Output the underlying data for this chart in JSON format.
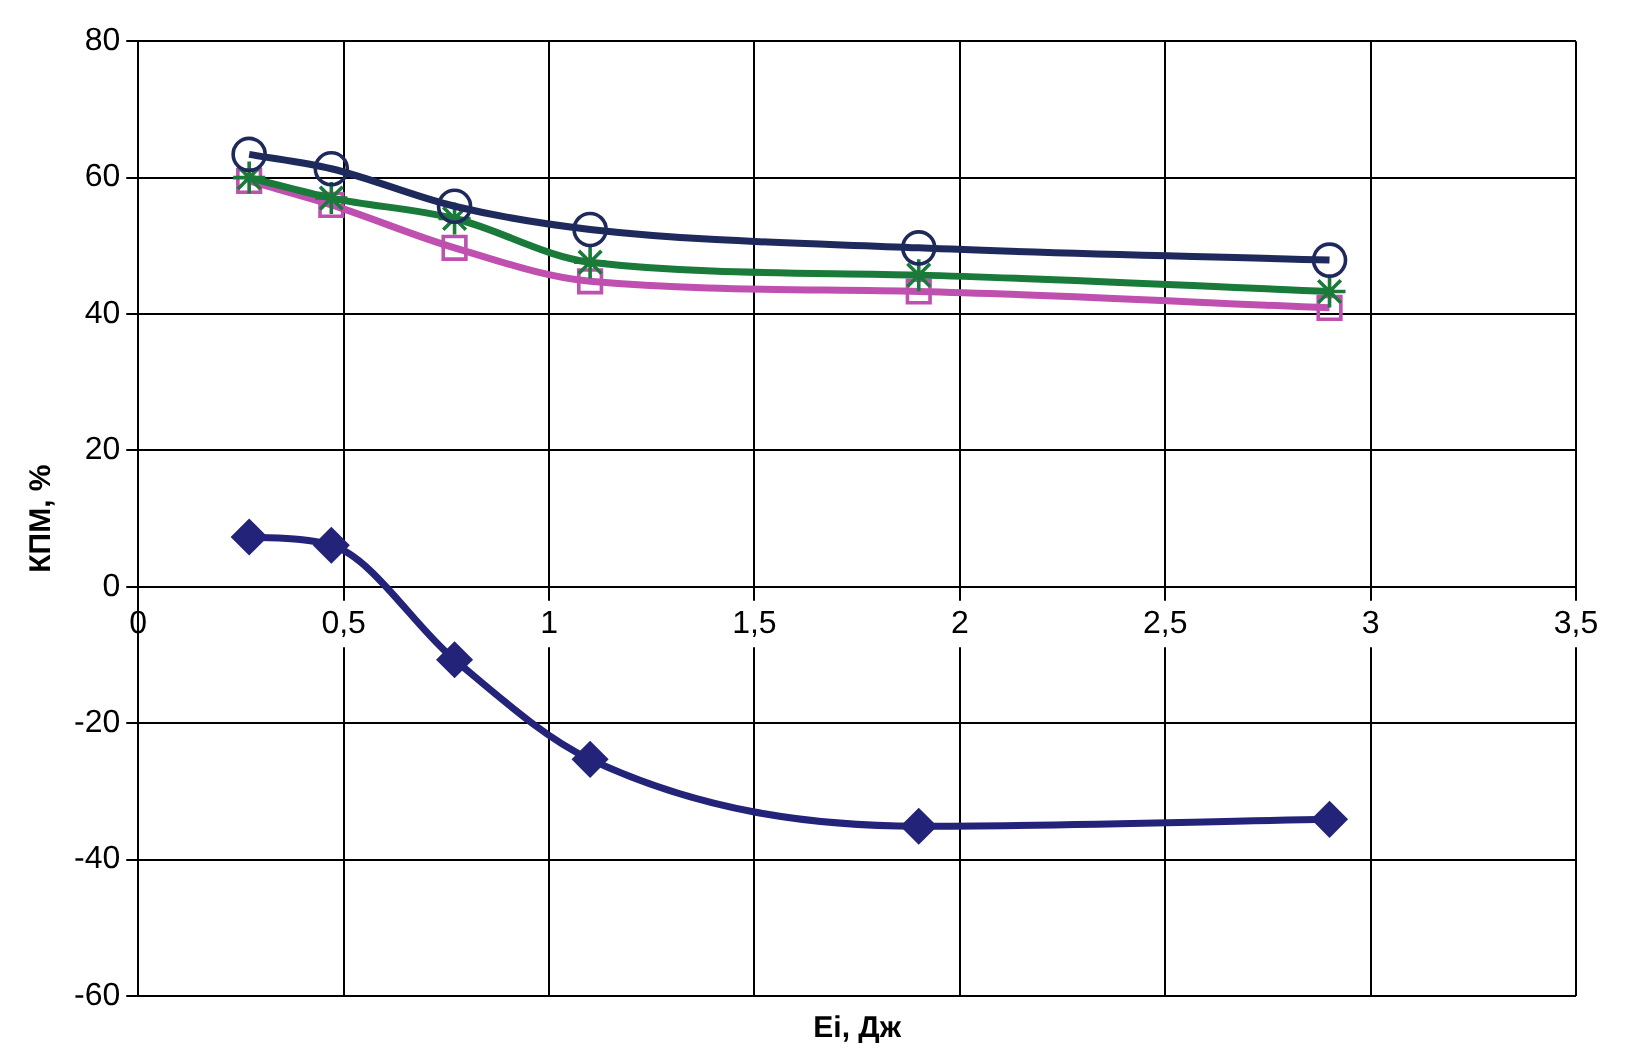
{
  "chart_data": {
    "type": "line",
    "xlabel": "Ei, Дж",
    "ylabel": "КПМ, %",
    "xlim": [
      0,
      3.5
    ],
    "xticks": [
      0,
      {
        "value": 0.5,
        "label": "0,5"
      },
      1,
      {
        "value": 1.5,
        "label": "1,5"
      },
      2,
      {
        "value": 2.5,
        "label": "2,5"
      },
      3,
      {
        "value": 3.5,
        "label": "3,5"
      }
    ],
    "ylim": [
      -60,
      80
    ],
    "yticks": [
      -60,
      -40,
      -20,
      0,
      20,
      40,
      60,
      80
    ],
    "grid": true,
    "legend": false,
    "x": [
      0.27,
      0.47,
      0.77,
      1.1,
      1.9,
      2.9
    ],
    "series": [
      {
        "color": "#1f2a5c",
        "marker": "circle",
        "values": [
          63.4,
          61.3,
          55.8,
          52.4,
          49.7,
          47.9
        ]
      },
      {
        "color": "#1a7a3a",
        "marker": "cross",
        "values": [
          60,
          57,
          54,
          47.6,
          45.7,
          43.3
        ]
      },
      {
        "color": "#c050b0",
        "marker": "square",
        "values": [
          59.5,
          56,
          49.7,
          44.8,
          43.3,
          40.9
        ]
      },
      {
        "color": "#23237a",
        "marker": "diamond",
        "values": [
          7.3,
          6.1,
          -10.7,
          -25.3,
          -35.1,
          -34.1
        ]
      }
    ]
  }
}
